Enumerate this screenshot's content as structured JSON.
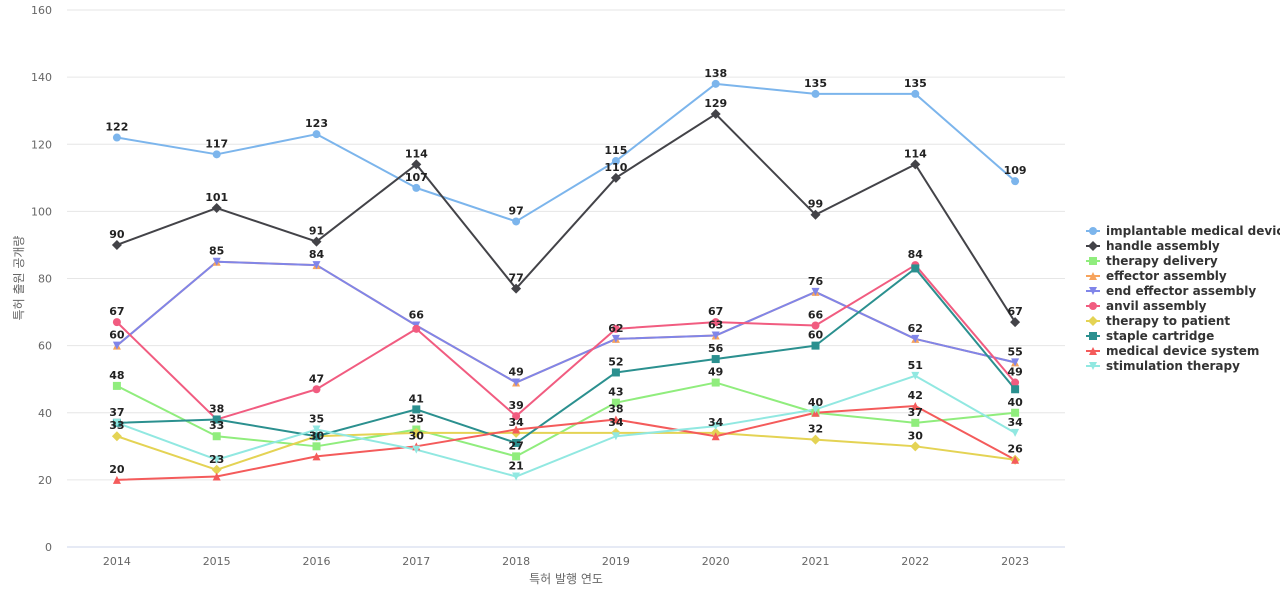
{
  "chart_data": {
    "type": "line",
    "title": "",
    "xlabel": "특허 발행 연도",
    "ylabel": "특허 출원 공개량",
    "ylim": [
      0,
      160
    ],
    "yticks": [
      0,
      20,
      40,
      60,
      80,
      100,
      120,
      140,
      160
    ],
    "grid": true,
    "legend_position": "right",
    "categories": [
      "2014",
      "2015",
      "2016",
      "2017",
      "2018",
      "2019",
      "2020",
      "2021",
      "2022",
      "2023"
    ],
    "series": [
      {
        "name": "implantable medical device",
        "color": "#7cb5ec",
        "marker": "circle",
        "values": [
          122,
          117,
          123,
          107,
          97,
          115,
          138,
          135,
          135,
          109
        ]
      },
      {
        "name": "handle assembly",
        "color": "#434348",
        "marker": "diamond",
        "values": [
          90,
          101,
          91,
          114,
          77,
          110,
          129,
          99,
          114,
          67
        ]
      },
      {
        "name": "therapy delivery",
        "color": "#90ed7d",
        "marker": "square",
        "values": [
          48,
          33,
          30,
          35,
          27,
          43,
          49,
          40,
          37,
          40
        ]
      },
      {
        "name": "effector assembly",
        "color": "#f7a35c",
        "marker": "triangle",
        "values": [
          60,
          85,
          84,
          66,
          49,
          62,
          63,
          76,
          62,
          55
        ]
      },
      {
        "name": "end effector assembly",
        "color": "#8085e9",
        "marker": "triangle-down",
        "values": [
          60,
          85,
          84,
          66,
          49,
          62,
          63,
          76,
          62,
          55
        ]
      },
      {
        "name": "anvil assembly",
        "color": "#f15c80",
        "marker": "circle",
        "values": [
          67,
          38,
          47,
          65,
          39,
          65,
          67,
          66,
          84,
          49
        ]
      },
      {
        "name": "therapy to patient",
        "color": "#e4d354",
        "marker": "diamond",
        "values": [
          33,
          23,
          33,
          34,
          34,
          34,
          34,
          32,
          30,
          26
        ]
      },
      {
        "name": "staple cartridge",
        "color": "#2b908f",
        "marker": "square",
        "values": [
          37,
          38,
          33,
          41,
          31,
          52,
          56,
          60,
          83,
          47
        ]
      },
      {
        "name": "medical device system",
        "color": "#f45b5b",
        "marker": "triangle",
        "values": [
          20,
          21,
          27,
          30,
          35,
          38,
          33,
          40,
          42,
          26
        ]
      },
      {
        "name": "stimulation therapy",
        "color": "#91e8e1",
        "marker": "triangle-down",
        "values": [
          37,
          26,
          35,
          29,
          21,
          33,
          36,
          41,
          51,
          34
        ]
      }
    ],
    "data_labels": [
      {
        "category": "2014",
        "value": 122,
        "text": "122"
      },
      {
        "category": "2014",
        "value": 90,
        "text": "90"
      },
      {
        "category": "2014",
        "value": 67,
        "text": "67"
      },
      {
        "category": "2014",
        "value": 60,
        "text": "60"
      },
      {
        "category": "2014",
        "value": 48,
        "text": "48"
      },
      {
        "category": "2014",
        "value": 37,
        "text": "37"
      },
      {
        "category": "2014",
        "value": 33,
        "text": "33"
      },
      {
        "category": "2014",
        "value": 20,
        "text": "20"
      },
      {
        "category": "2015",
        "value": 117,
        "text": "117"
      },
      {
        "category": "2015",
        "value": 101,
        "text": "101"
      },
      {
        "category": "2015",
        "value": 85,
        "text": "85"
      },
      {
        "category": "2015",
        "value": 38,
        "text": "38"
      },
      {
        "category": "2015",
        "value": 33,
        "text": "33"
      },
      {
        "category": "2015",
        "value": 23,
        "text": "23"
      },
      {
        "category": "2016",
        "value": 123,
        "text": "123"
      },
      {
        "category": "2016",
        "value": 91,
        "text": "91"
      },
      {
        "category": "2016",
        "value": 84,
        "text": "84"
      },
      {
        "category": "2016",
        "value": 47,
        "text": "47"
      },
      {
        "category": "2016",
        "value": 35,
        "text": "35"
      },
      {
        "category": "2016",
        "value": 30,
        "text": "30"
      },
      {
        "category": "2017",
        "value": 114,
        "text": "114"
      },
      {
        "category": "2017",
        "value": 107,
        "text": "107"
      },
      {
        "category": "2017",
        "value": 66,
        "text": "66"
      },
      {
        "category": "2017",
        "value": 41,
        "text": "41"
      },
      {
        "category": "2017",
        "value": 35,
        "text": "35"
      },
      {
        "category": "2017",
        "value": 30,
        "text": "30"
      },
      {
        "category": "2018",
        "value": 97,
        "text": "97"
      },
      {
        "category": "2018",
        "value": 77,
        "text": "77"
      },
      {
        "category": "2018",
        "value": 49,
        "text": "49"
      },
      {
        "category": "2018",
        "value": 39,
        "text": "39"
      },
      {
        "category": "2018",
        "value": 34,
        "text": "34"
      },
      {
        "category": "2018",
        "value": 27,
        "text": "27"
      },
      {
        "category": "2018",
        "value": 21,
        "text": "21"
      },
      {
        "category": "2019",
        "value": 115,
        "text": "115"
      },
      {
        "category": "2019",
        "value": 110,
        "text": "110"
      },
      {
        "category": "2019",
        "value": 62,
        "text": "62"
      },
      {
        "category": "2019",
        "value": 52,
        "text": "52"
      },
      {
        "category": "2019",
        "value": 43,
        "text": "43"
      },
      {
        "category": "2019",
        "value": 38,
        "text": "38"
      },
      {
        "category": "2019",
        "value": 34,
        "text": "34"
      },
      {
        "category": "2020",
        "value": 138,
        "text": "138"
      },
      {
        "category": "2020",
        "value": 129,
        "text": "129"
      },
      {
        "category": "2020",
        "value": 67,
        "text": "67"
      },
      {
        "category": "2020",
        "value": 63,
        "text": "63"
      },
      {
        "category": "2020",
        "value": 56,
        "text": "56"
      },
      {
        "category": "2020",
        "value": 49,
        "text": "49"
      },
      {
        "category": "2020",
        "value": 34,
        "text": "34"
      },
      {
        "category": "2021",
        "value": 135,
        "text": "135"
      },
      {
        "category": "2021",
        "value": 99,
        "text": "99"
      },
      {
        "category": "2021",
        "value": 76,
        "text": "76"
      },
      {
        "category": "2021",
        "value": 66,
        "text": "66"
      },
      {
        "category": "2021",
        "value": 60,
        "text": "60"
      },
      {
        "category": "2021",
        "value": 40,
        "text": "40"
      },
      {
        "category": "2021",
        "value": 32,
        "text": "32"
      },
      {
        "category": "2022",
        "value": 135,
        "text": "135"
      },
      {
        "category": "2022",
        "value": 114,
        "text": "114"
      },
      {
        "category": "2022",
        "value": 84,
        "text": "84"
      },
      {
        "category": "2022",
        "value": 62,
        "text": "62"
      },
      {
        "category": "2022",
        "value": 51,
        "text": "51"
      },
      {
        "category": "2022",
        "value": 42,
        "text": "42"
      },
      {
        "category": "2022",
        "value": 37,
        "text": "37"
      },
      {
        "category": "2022",
        "value": 30,
        "text": "30"
      },
      {
        "category": "2023",
        "value": 109,
        "text": "109"
      },
      {
        "category": "2023",
        "value": 67,
        "text": "67"
      },
      {
        "category": "2023",
        "value": 55,
        "text": "55"
      },
      {
        "category": "2023",
        "value": 49,
        "text": "49"
      },
      {
        "category": "2023",
        "value": 40,
        "text": "40"
      },
      {
        "category": "2023",
        "value": 34,
        "text": "34"
      },
      {
        "category": "2023",
        "value": 26,
        "text": "26"
      }
    ]
  }
}
